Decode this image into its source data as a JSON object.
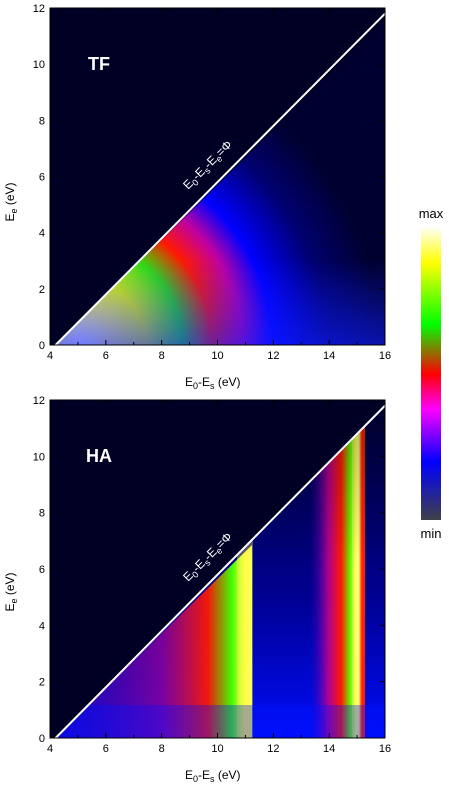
{
  "chart_data": [
    {
      "type": "heatmap",
      "panel_label": "TF",
      "xlabel": {
        "main": "E",
        "sub1": "0",
        "mid": "-E",
        "sub2": "s",
        "unit": " (eV)"
      },
      "ylabel": {
        "main": "E",
        "sub": "e",
        "unit": " (eV)"
      },
      "xlim": [
        4,
        16
      ],
      "ylim": [
        0,
        12
      ],
      "xticks": [
        "4",
        "6",
        "8",
        "10",
        "12",
        "14",
        "16"
      ],
      "yticks": [
        "0",
        "2",
        "4",
        "6",
        "8",
        "10",
        "12"
      ],
      "boundary_line": {
        "x": [
          4.2,
          16
        ],
        "y": [
          0,
          11.8
        ]
      },
      "boundary_label": {
        "p1": "E",
        "s1": "0",
        "p2": "-E",
        "s2": "s",
        "p3": "-E",
        "s3": "e",
        "p4": "=Φ"
      }
    },
    {
      "type": "heatmap",
      "panel_label": "HA",
      "xlabel": {
        "main": "E",
        "sub1": "0",
        "mid": "-E",
        "sub2": "s",
        "unit": " (eV)"
      },
      "ylabel": {
        "main": "E",
        "sub": "e",
        "unit": " (eV)"
      },
      "xlim": [
        4,
        16
      ],
      "ylim": [
        0,
        12
      ],
      "xticks": [
        "4",
        "6",
        "8",
        "10",
        "12",
        "14",
        "16"
      ],
      "yticks": [
        "0",
        "2",
        "4",
        "6",
        "8",
        "10",
        "12"
      ],
      "boundary_line": {
        "x": [
          4.2,
          16
        ],
        "y": [
          0,
          11.8
        ]
      },
      "boundary_label": {
        "p1": "E",
        "s1": "0",
        "p2": "-E",
        "s2": "s",
        "p3": "-E",
        "s3": "e",
        "p4": "=Φ"
      },
      "resonances_x": [
        11,
        15
      ]
    }
  ],
  "colorbar": {
    "max_label": "max",
    "min_label": "min",
    "colors": [
      "#fffff0",
      "#ffff00",
      "#00ff00",
      "#ff0000",
      "#ff00ff",
      "#0000ff",
      "#000014"
    ]
  },
  "colors": {
    "background": "#000025",
    "line": "#ffffff"
  }
}
